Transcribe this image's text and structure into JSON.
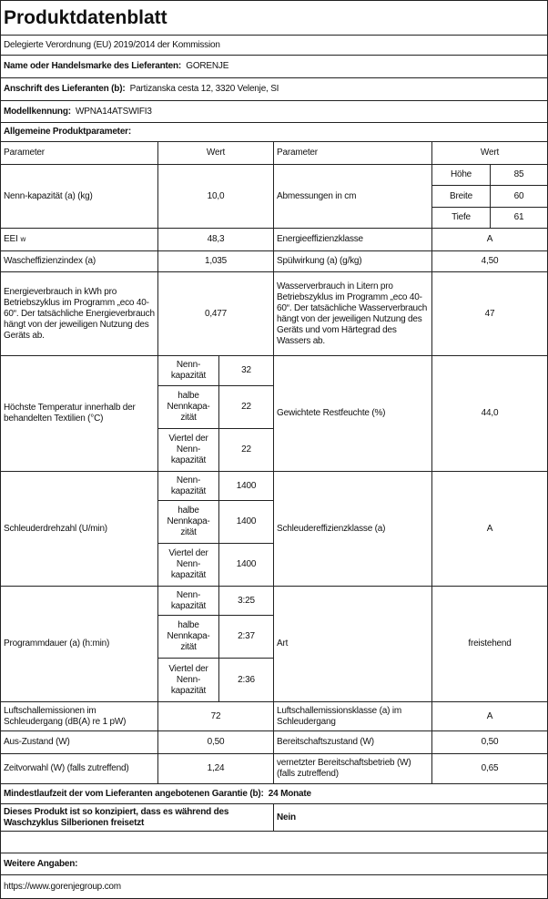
{
  "title": "Produktdatenblatt",
  "subtitle": "Delegierte Verordnung (EU) 2019/2014 der Kommission",
  "supplier": {
    "label": "Name oder Handelsmarke des Lieferanten:",
    "value": "GORENJE"
  },
  "address": {
    "label": "Anschrift des Lieferanten (b):",
    "value": "Partizanska cesta 12, 3320 Velenje, SI"
  },
  "model": {
    "label": "Modellkennung:",
    "value": "WPNA14ATSWIFI3"
  },
  "general": "Allgemeine Produktparameter:",
  "headers": {
    "param": "Parameter",
    "value": "Wert"
  },
  "rows": {
    "capacity": {
      "label": "Nenn-kapazität (a) (kg)",
      "value": "10,0"
    },
    "dimensions": {
      "label": "Abmessungen in cm",
      "hoehe": "Höhe",
      "hoehe_v": "85",
      "breite": "Breite",
      "breite_v": "60",
      "tiefe": "Tiefe",
      "tiefe_v": "61"
    },
    "eei": {
      "label": "EEI",
      "sub": "w",
      "value": "48,3"
    },
    "energy_class": {
      "label": "Energieeffizienzklasse",
      "value": "A"
    },
    "wash_index": {
      "label": "Wascheffizienzindex (a)",
      "value": "1,035"
    },
    "rinse": {
      "label": "Spülwirkung (a) (g/kg)",
      "value": "4,50"
    },
    "energy": {
      "label": "Energieverbrauch in kWh pro Betriebszyklus im Programm „eco 40-60“. Der tatsächliche Energieverbrauch hängt von der jeweiligen Nutzung des Geräts ab.",
      "value": "0,477"
    },
    "water": {
      "label": "Wasserverbrauch in Litern pro Betriebszyklus im Programm „eco 40-60“. Der tatsächliche Wasserverbrauch hängt von der jeweiligen Nutzung des Geräts und vom Härtegrad des Wassers ab.",
      "value": "47"
    },
    "temp": {
      "label": "Höchste Temperatur innerhalb der behandelten Textilien (°C)",
      "v1": "32",
      "v2": "22",
      "v3": "22"
    },
    "moisture": {
      "label": "Gewichtete Restfeuchte (%)",
      "value": "44,0"
    },
    "spin": {
      "label": "Schleuderdrehzahl (U/min)",
      "v1": "1400",
      "v2": "1400",
      "v3": "1400"
    },
    "spin_class": {
      "label": "Schleudereffizienzklasse (a)",
      "value": "A"
    },
    "duration": {
      "label": "Programmdauer (a) (h:min)",
      "v1": "3:25",
      "v2": "2:37",
      "v3": "2:36"
    },
    "type": {
      "label": "Art",
      "value": "freistehend"
    },
    "noise": {
      "label": "Luftschallemissionen im Schleudergang (dB(A) re 1 pW)",
      "value": "72"
    },
    "noise_class": {
      "label": "Luftschallemissionsklasse (a) im Schleudergang",
      "value": "A"
    },
    "off": {
      "label": "Aus-Zustand (W)",
      "value": "0,50"
    },
    "standby": {
      "label": "Bereitschaftszustand (W)",
      "value": "0,50"
    },
    "delay": {
      "label": "Zeitvorwahl (W) (falls zutreffend)",
      "value": "1,24"
    },
    "network": {
      "label": "vernetzter Bereitschaftsbetrieb (W) (falls zutreffend)",
      "value": "0,65"
    }
  },
  "loads": {
    "full": "Nenn-kapazität",
    "half": "halbe Nennkapa-zität",
    "quarter": "Viertel der Nenn-kapazität"
  },
  "warranty": {
    "label": "Mindestlaufzeit der vom Lieferanten angebotenen Garantie (b):",
    "value": "24 Monate"
  },
  "silver": {
    "label": "Dieses Produkt ist so konzipiert, dass es während des Waschzyklus Silberionen freisetzt",
    "value": "Nein"
  },
  "further": "Weitere Angaben:",
  "url": "https://www.gorenjegroup.com"
}
